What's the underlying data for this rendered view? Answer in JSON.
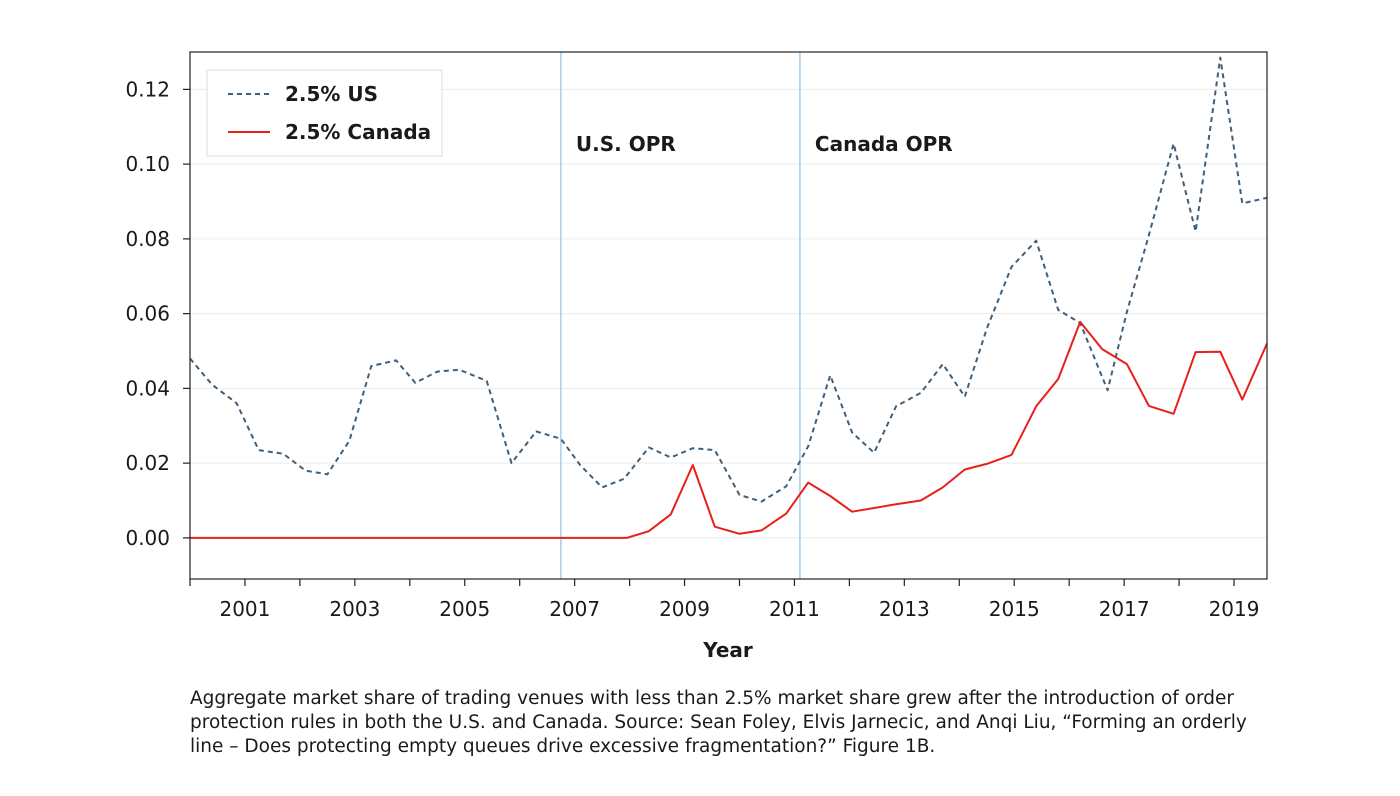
{
  "chart_data": {
    "type": "line",
    "xlabel": "Year",
    "ylabel": "",
    "xlim": [
      2000.0,
      2019.6
    ],
    "ylim": [
      -0.011,
      0.13
    ],
    "x_ticks": [
      2001,
      2003,
      2005,
      2007,
      2009,
      2011,
      2013,
      2015,
      2017,
      2019
    ],
    "y_ticks": [
      0.0,
      0.02,
      0.04,
      0.06,
      0.08,
      0.1,
      0.12
    ],
    "y_tick_labels": [
      "0.00",
      "0.02",
      "0.04",
      "0.06",
      "0.08",
      "0.10",
      "0.12"
    ],
    "grid": "horizontal",
    "legend": "top-left",
    "series": [
      {
        "name": "2.5% US",
        "color": "#3f5f7a",
        "style": "dashed",
        "x": [
          2000.0,
          2000.4,
          2000.85,
          2001.25,
          2001.7,
          2002.1,
          2002.5,
          2002.9,
          2003.3,
          2003.75,
          2004.1,
          2004.5,
          2004.9,
          2005.4,
          2005.85,
          2006.3,
          2006.75,
          2007.1,
          2007.5,
          2007.9,
          2008.35,
          2008.75,
          2009.15,
          2009.55,
          2010.0,
          2010.4,
          2010.85,
          2011.25,
          2011.65,
          2012.05,
          2012.45,
          2012.85,
          2013.3,
          2013.7,
          2014.1,
          2014.5,
          2014.95,
          2015.4,
          2015.8,
          2016.2,
          2016.7,
          2017.05,
          2017.45,
          2017.9,
          2018.3,
          2018.75,
          2019.15,
          2019.6
        ],
        "values": [
          0.048,
          0.041,
          0.036,
          0.0235,
          0.0225,
          0.018,
          0.017,
          0.026,
          0.046,
          0.0475,
          0.0415,
          0.0445,
          0.045,
          0.042,
          0.02,
          0.0285,
          0.0265,
          0.0195,
          0.0135,
          0.0158,
          0.0242,
          0.0215,
          0.024,
          0.0235,
          0.0115,
          0.0097,
          0.0138,
          0.0245,
          0.0435,
          0.0282,
          0.0228,
          0.0352,
          0.0388,
          0.0465,
          0.0378,
          0.056,
          0.0725,
          0.0795,
          0.061,
          0.0575,
          0.0395,
          0.0605,
          0.081,
          0.1055,
          0.082,
          0.1285,
          0.0895,
          0.091
        ]
      },
      {
        "name": "2.5% Canada",
        "color": "#e8201a",
        "style": "solid",
        "x": [
          2000.0,
          2007.95,
          2008.35,
          2008.75,
          2009.15,
          2009.55,
          2010.0,
          2010.4,
          2010.85,
          2011.25,
          2011.65,
          2012.05,
          2012.45,
          2012.85,
          2013.3,
          2013.7,
          2014.1,
          2014.5,
          2014.95,
          2015.4,
          2015.8,
          2016.2,
          2016.6,
          2017.05,
          2017.45,
          2017.9,
          2018.3,
          2018.75,
          2019.15,
          2019.6
        ],
        "values": [
          0.0,
          0.0,
          0.0018,
          0.0063,
          0.0195,
          0.003,
          0.0011,
          0.002,
          0.0065,
          0.0148,
          0.0112,
          0.007,
          0.008,
          0.009,
          0.01,
          0.0135,
          0.0183,
          0.0198,
          0.0222,
          0.0352,
          0.0425,
          0.0578,
          0.0505,
          0.0465,
          0.0353,
          0.0332,
          0.0497,
          0.0498,
          0.037,
          0.052
        ]
      }
    ],
    "annotations": [
      {
        "x": 2006.75,
        "label": "U.S. OPR",
        "line_color": "#9fc9ea"
      },
      {
        "x": 2011.1,
        "label": "Canada OPR",
        "line_color": "#9fc9ea"
      }
    ]
  },
  "caption": "Aggregate market share of trading venues with less than 2.5% market share grew after the introduction of order protection rules in both the U.S. and Canada. Source: Sean Foley, Elvis Jarnecic, and Anqi Liu, “Forming an orderly line – Does protecting empty queues drive excessive fragmentation?” Figure 1B."
}
